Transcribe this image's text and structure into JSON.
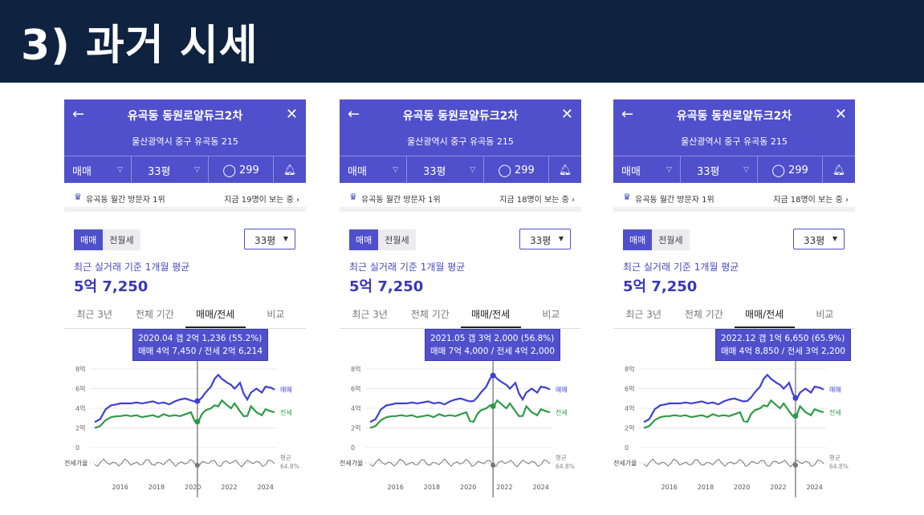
{
  "page": {
    "title": "3) 과거 시세"
  },
  "panels": [
    {
      "header": {
        "title": "유곡동 동원로얄듀크2차",
        "address": "울산광역시 중구 유곡동 215",
        "deal_type": "매매",
        "size": "33평",
        "comments": "299"
      },
      "notice": {
        "left": "유곡동 월간 방문자 1위",
        "right": "지금 19명이 보는 중 ›"
      },
      "filters": {
        "seg_on": "매매",
        "seg_off": "전월세",
        "size": "33평"
      },
      "average": {
        "label": "최근 실거래 기준 1개월 평균",
        "value": "5억 7,250"
      },
      "tabs": [
        "최근 3년",
        "전체 기간",
        "매매/전세",
        "비교"
      ],
      "tooltip": {
        "line1": "2020.04  갭 2억 1,236 (55.2%)",
        "line2": "매매 4억 7,450 / 전세 2억 6,214"
      },
      "cursor_year": 2020.25
    },
    {
      "header": {
        "title": "유곡동 동원로얄듀크2차",
        "address": "울산광역시 중구 유곡동 215",
        "deal_type": "매매",
        "size": "33평",
        "comments": "299"
      },
      "notice": {
        "left": "유곡동 월간 방문자 1위",
        "right": "지금 18명이 보는 중 ›"
      },
      "filters": {
        "seg_on": "매매",
        "seg_off": "전월세",
        "size": "33평"
      },
      "average": {
        "label": "최근 실거래 기준 1개월 평균",
        "value": "5억 7,250"
      },
      "tabs": [
        "최근 3년",
        "전체 기간",
        "매매/전세",
        "비교"
      ],
      "tooltip": {
        "line1": "2021.05  갭 3억 2,000 (56.8%)",
        "line2": "매매 7억 4,000 / 전세 4억 2,000"
      },
      "cursor_year": 2021.37
    },
    {
      "header": {
        "title": "유곡동 동원로얄듀크2차",
        "address": "울산광역시 중구 유곡동 215",
        "deal_type": "매매",
        "size": "33평",
        "comments": "299"
      },
      "notice": {
        "left": "유곡동 월간 방문자 1위",
        "right": "지금 18명이 보는 중 ›"
      },
      "filters": {
        "seg_on": "매매",
        "seg_off": "전월세",
        "size": "33평"
      },
      "average": {
        "label": "최근 실거래 기준 1개월 평균",
        "value": "5억 7,250"
      },
      "tabs": [
        "최근 3년",
        "전체 기간",
        "매매/전세",
        "비교"
      ],
      "tooltip": {
        "line1": "2022.12  갭 1억 6,650 (65.9%)",
        "line2": "매매 4억 8,850 / 전세 3억 2,200"
      },
      "cursor_year": 2022.95
    }
  ],
  "chart_data": {
    "type": "line",
    "x_ticks": [
      2016,
      2018,
      2020,
      2022,
      2024
    ],
    "y_ticks": [
      "8억",
      "6억",
      "4억",
      "2억",
      "0"
    ],
    "ylim": [
      0,
      8
    ],
    "ratio_label": "전세가율",
    "ratio_avg_label": "평균",
    "ratio_avg_value": "64.8%",
    "colors": {
      "sale": "#3f3fd4",
      "jeonse": "#2e9a48",
      "ratio": "#777777",
      "cursor": "#888888"
    },
    "series": [
      {
        "name": "매매",
        "x": [
          2014.6,
          2014.9,
          2015.2,
          2015.5,
          2015.8,
          2016.0,
          2016.3,
          2016.6,
          2016.9,
          2017.2,
          2017.5,
          2017.8,
          2018.1,
          2018.4,
          2018.7,
          2019.0,
          2019.3,
          2019.6,
          2019.9,
          2020.1,
          2020.3,
          2020.5,
          2020.7,
          2021.0,
          2021.2,
          2021.4,
          2021.6,
          2021.9,
          2022.1,
          2022.3,
          2022.6,
          2022.8,
          2023.0,
          2023.2,
          2023.5,
          2023.8,
          2024.0,
          2024.3,
          2024.5
        ],
        "values": [
          2.6,
          2.9,
          3.9,
          4.3,
          4.4,
          4.5,
          4.5,
          4.5,
          4.6,
          4.5,
          4.6,
          4.7,
          4.5,
          4.6,
          4.4,
          4.7,
          4.9,
          5.0,
          4.8,
          4.7,
          4.75,
          5.1,
          5.6,
          6.2,
          7.0,
          7.4,
          7.0,
          6.6,
          6.4,
          6.0,
          6.6,
          5.5,
          4.9,
          5.6,
          6.0,
          5.6,
          6.2,
          6.1,
          5.9
        ]
      },
      {
        "name": "전세",
        "x": [
          2014.6,
          2014.9,
          2015.2,
          2015.5,
          2015.8,
          2016.0,
          2016.3,
          2016.6,
          2016.9,
          2017.2,
          2017.5,
          2017.8,
          2018.1,
          2018.4,
          2018.7,
          2019.0,
          2019.3,
          2019.6,
          2019.9,
          2020.1,
          2020.3,
          2020.5,
          2020.7,
          2021.0,
          2021.2,
          2021.4,
          2021.6,
          2021.9,
          2022.1,
          2022.3,
          2022.6,
          2022.8,
          2023.0,
          2023.2,
          2023.5,
          2023.8,
          2024.0,
          2024.3,
          2024.5
        ],
        "values": [
          2.0,
          2.2,
          2.8,
          3.1,
          3.2,
          3.2,
          3.3,
          3.2,
          3.3,
          3.1,
          3.2,
          3.3,
          3.1,
          3.4,
          3.2,
          3.3,
          3.2,
          3.4,
          3.6,
          2.7,
          2.62,
          3.4,
          3.8,
          4.0,
          4.3,
          4.2,
          4.8,
          4.3,
          4.0,
          4.5,
          3.7,
          3.2,
          3.22,
          4.2,
          3.6,
          3.3,
          3.9,
          3.7,
          3.6
        ]
      }
    ]
  }
}
